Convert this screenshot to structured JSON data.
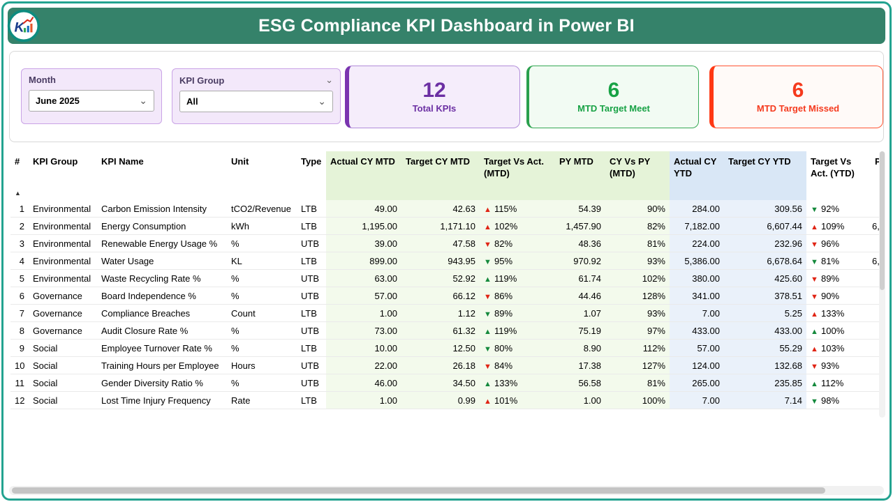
{
  "header": {
    "title": "ESG Compliance KPI Dashboard in Power BI",
    "bg": "#35826A",
    "border_color": "#23A390"
  },
  "filters": {
    "month": {
      "label": "Month",
      "value": "June 2025"
    },
    "kpi_group": {
      "label": "KPI Group",
      "value": "All"
    }
  },
  "cards": [
    {
      "id": "total-kpis",
      "value": "12",
      "label": "Total KPIs",
      "accent": "#7A35B0"
    },
    {
      "id": "mtd-target-meet",
      "value": "6",
      "label": "MTD Target Meet",
      "accent": "#18A245"
    },
    {
      "id": "mtd-target-missed",
      "value": "6",
      "label": "MTD Target Missed",
      "accent": "#F53A1E"
    }
  ],
  "icons": {
    "up": "▲",
    "down": "▼",
    "chevron": "⌄",
    "sort_asc": "▲"
  },
  "colors": {
    "good": "#14893C",
    "bad": "#E02414"
  },
  "table": {
    "columns": [
      "#",
      "KPI Group",
      "KPI Name",
      "Unit",
      "Type",
      "Actual CY MTD",
      "Target CY MTD",
      "Target Vs Act. (MTD)",
      "PY MTD",
      "CY Vs PY (MTD)",
      "Actual CY YTD",
      "Target CY YTD",
      "Target Vs Act. (YTD)",
      "P"
    ],
    "rows": [
      {
        "num": "1",
        "group": "Environmental",
        "name": "Carbon Emission Intensity",
        "unit": "tCO2/Revenue",
        "type": "LTB",
        "actual_mtd": "49.00",
        "target_mtd": "42.63",
        "tva_mtd": {
          "dir": "up",
          "status": "bad",
          "pct": "115%"
        },
        "py_mtd": "54.39",
        "cy_vs_py": "90%",
        "actual_ytd": "284.00",
        "target_ytd": "309.56",
        "tva_ytd": {
          "dir": "down",
          "status": "good",
          "pct": "92%"
        },
        "py_ytd": ""
      },
      {
        "num": "2",
        "group": "Environmental",
        "name": "Energy Consumption",
        "unit": "kWh",
        "type": "LTB",
        "actual_mtd": "1,195.00",
        "target_mtd": "1,171.10",
        "tva_mtd": {
          "dir": "up",
          "status": "bad",
          "pct": "102%"
        },
        "py_mtd": "1,457.90",
        "cy_vs_py": "82%",
        "actual_ytd": "7,182.00",
        "target_ytd": "6,607.44",
        "tva_ytd": {
          "dir": "up",
          "status": "bad",
          "pct": "109%"
        },
        "py_ytd": "6,"
      },
      {
        "num": "3",
        "group": "Environmental",
        "name": "Renewable Energy Usage %",
        "unit": "%",
        "type": "UTB",
        "actual_mtd": "39.00",
        "target_mtd": "47.58",
        "tva_mtd": {
          "dir": "down",
          "status": "bad",
          "pct": "82%"
        },
        "py_mtd": "48.36",
        "cy_vs_py": "81%",
        "actual_ytd": "224.00",
        "target_ytd": "232.96",
        "tva_ytd": {
          "dir": "down",
          "status": "bad",
          "pct": "96%"
        },
        "py_ytd": ""
      },
      {
        "num": "4",
        "group": "Environmental",
        "name": "Water Usage",
        "unit": "KL",
        "type": "LTB",
        "actual_mtd": "899.00",
        "target_mtd": "943.95",
        "tva_mtd": {
          "dir": "down",
          "status": "good",
          "pct": "95%"
        },
        "py_mtd": "970.92",
        "cy_vs_py": "93%",
        "actual_ytd": "5,386.00",
        "target_ytd": "6,678.64",
        "tva_ytd": {
          "dir": "down",
          "status": "good",
          "pct": "81%"
        },
        "py_ytd": "6,"
      },
      {
        "num": "5",
        "group": "Environmental",
        "name": "Waste Recycling Rate %",
        "unit": "%",
        "type": "UTB",
        "actual_mtd": "63.00",
        "target_mtd": "52.92",
        "tva_mtd": {
          "dir": "up",
          "status": "good",
          "pct": "119%"
        },
        "py_mtd": "61.74",
        "cy_vs_py": "102%",
        "actual_ytd": "380.00",
        "target_ytd": "425.60",
        "tva_ytd": {
          "dir": "down",
          "status": "bad",
          "pct": "89%"
        },
        "py_ytd": ""
      },
      {
        "num": "6",
        "group": "Governance",
        "name": "Board Independence %",
        "unit": "%",
        "type": "UTB",
        "actual_mtd": "57.00",
        "target_mtd": "66.12",
        "tva_mtd": {
          "dir": "down",
          "status": "bad",
          "pct": "86%"
        },
        "py_mtd": "44.46",
        "cy_vs_py": "128%",
        "actual_ytd": "341.00",
        "target_ytd": "378.51",
        "tva_ytd": {
          "dir": "down",
          "status": "bad",
          "pct": "90%"
        },
        "py_ytd": ""
      },
      {
        "num": "7",
        "group": "Governance",
        "name": "Compliance Breaches",
        "unit": "Count",
        "type": "LTB",
        "actual_mtd": "1.00",
        "target_mtd": "1.12",
        "tva_mtd": {
          "dir": "down",
          "status": "good",
          "pct": "89%"
        },
        "py_mtd": "1.07",
        "cy_vs_py": "93%",
        "actual_ytd": "7.00",
        "target_ytd": "5.25",
        "tva_ytd": {
          "dir": "up",
          "status": "bad",
          "pct": "133%"
        },
        "py_ytd": ""
      },
      {
        "num": "8",
        "group": "Governance",
        "name": "Audit Closure Rate %",
        "unit": "%",
        "type": "UTB",
        "actual_mtd": "73.00",
        "target_mtd": "61.32",
        "tva_mtd": {
          "dir": "up",
          "status": "good",
          "pct": "119%"
        },
        "py_mtd": "75.19",
        "cy_vs_py": "97%",
        "actual_ytd": "433.00",
        "target_ytd": "433.00",
        "tva_ytd": {
          "dir": "up",
          "status": "good",
          "pct": "100%"
        },
        "py_ytd": ""
      },
      {
        "num": "9",
        "group": "Social",
        "name": "Employee Turnover Rate %",
        "unit": "%",
        "type": "LTB",
        "actual_mtd": "10.00",
        "target_mtd": "12.50",
        "tva_mtd": {
          "dir": "down",
          "status": "good",
          "pct": "80%"
        },
        "py_mtd": "8.90",
        "cy_vs_py": "112%",
        "actual_ytd": "57.00",
        "target_ytd": "55.29",
        "tva_ytd": {
          "dir": "up",
          "status": "bad",
          "pct": "103%"
        },
        "py_ytd": ""
      },
      {
        "num": "10",
        "group": "Social",
        "name": "Training Hours per Employee",
        "unit": "Hours",
        "type": "UTB",
        "actual_mtd": "22.00",
        "target_mtd": "26.18",
        "tva_mtd": {
          "dir": "down",
          "status": "bad",
          "pct": "84%"
        },
        "py_mtd": "17.38",
        "cy_vs_py": "127%",
        "actual_ytd": "124.00",
        "target_ytd": "132.68",
        "tva_ytd": {
          "dir": "down",
          "status": "bad",
          "pct": "93%"
        },
        "py_ytd": ""
      },
      {
        "num": "11",
        "group": "Social",
        "name": "Gender Diversity Ratio %",
        "unit": "%",
        "type": "UTB",
        "actual_mtd": "46.00",
        "target_mtd": "34.50",
        "tva_mtd": {
          "dir": "up",
          "status": "good",
          "pct": "133%"
        },
        "py_mtd": "56.58",
        "cy_vs_py": "81%",
        "actual_ytd": "265.00",
        "target_ytd": "235.85",
        "tva_ytd": {
          "dir": "up",
          "status": "good",
          "pct": "112%"
        },
        "py_ytd": ""
      },
      {
        "num": "12",
        "group": "Social",
        "name": "Lost Time Injury Frequency",
        "unit": "Rate",
        "type": "LTB",
        "actual_mtd": "1.00",
        "target_mtd": "0.99",
        "tva_mtd": {
          "dir": "up",
          "status": "bad",
          "pct": "101%"
        },
        "py_mtd": "1.00",
        "cy_vs_py": "100%",
        "actual_ytd": "7.00",
        "target_ytd": "7.14",
        "tva_ytd": {
          "dir": "down",
          "status": "good",
          "pct": "98%"
        },
        "py_ytd": ""
      }
    ]
  }
}
